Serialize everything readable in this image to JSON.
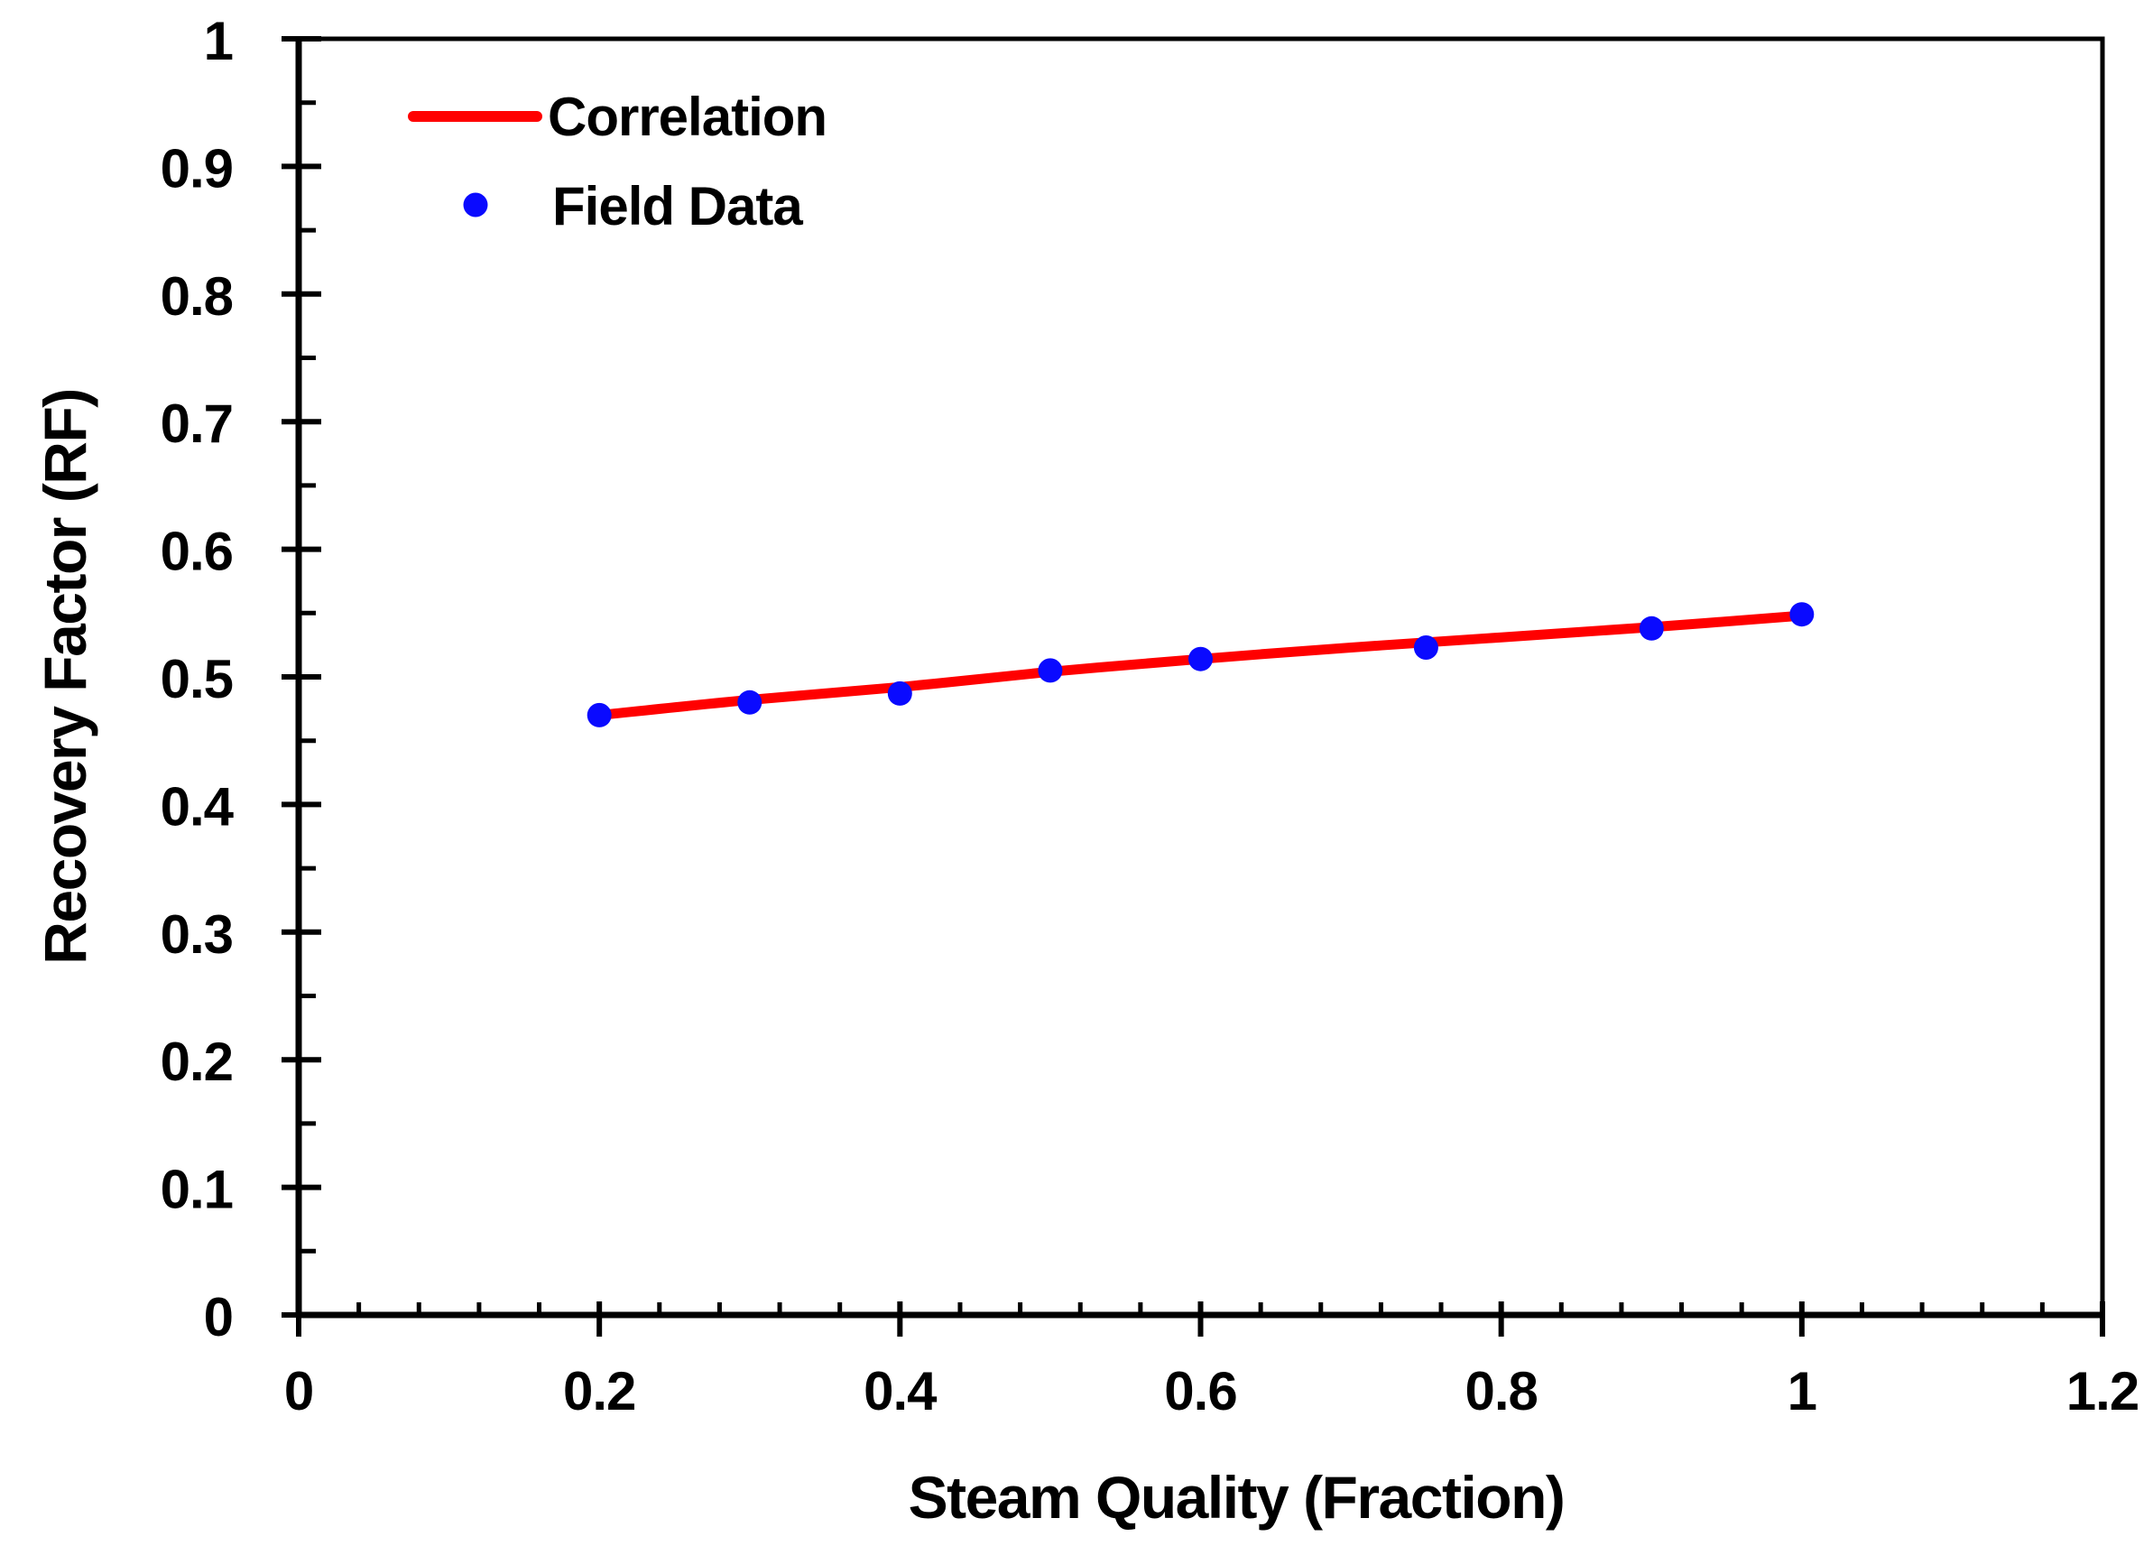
{
  "chart_data": {
    "type": "scatter",
    "title": "",
    "xlabel": "Steam Quality (Fraction)",
    "ylabel": "Recovery Factor (RF)",
    "xlim": [
      0,
      1.2
    ],
    "ylim": [
      0,
      1
    ],
    "grid": false,
    "legend_position": "inside-top-left",
    "x_major_ticks": [
      {
        "value": 0,
        "label": "0"
      },
      {
        "value": 0.2,
        "label": "0.2"
      },
      {
        "value": 0.4,
        "label": "0.4"
      },
      {
        "value": 0.6,
        "label": "0.6"
      },
      {
        "value": 0.8,
        "label": "0.8"
      },
      {
        "value": 1,
        "label": "1"
      },
      {
        "value": 1.2,
        "label": "1.2"
      }
    ],
    "x_minor_tick_step": 0.04,
    "y_major_ticks": [
      {
        "value": 0,
        "label": "0"
      },
      {
        "value": 0.1,
        "label": "0.1"
      },
      {
        "value": 0.2,
        "label": "0.2"
      },
      {
        "value": 0.3,
        "label": "0.3"
      },
      {
        "value": 0.4,
        "label": "0.4"
      },
      {
        "value": 0.5,
        "label": "0.5"
      },
      {
        "value": 0.6,
        "label": "0.6"
      },
      {
        "value": 0.7,
        "label": "0.7"
      },
      {
        "value": 0.8,
        "label": "0.8"
      },
      {
        "value": 0.9,
        "label": "0.9"
      },
      {
        "value": 1,
        "label": "1"
      }
    ],
    "y_minor_tick_step": 0.05,
    "series": [
      {
        "name": "Correlation",
        "type": "line",
        "color": "#ff0000",
        "x": [
          0.2,
          0.3,
          0.4,
          0.5,
          0.6,
          0.7,
          0.8,
          0.9,
          1.0
        ],
        "y": [
          0.47,
          0.482,
          0.492,
          0.504,
          0.514,
          0.523,
          0.531,
          0.539,
          0.548
        ]
      },
      {
        "name": "Field Data",
        "type": "scatter",
        "color": "#0a0aff",
        "x": [
          0.2,
          0.3,
          0.4,
          0.5,
          0.6,
          0.75,
          0.9,
          1.0
        ],
        "y": [
          0.47,
          0.48,
          0.487,
          0.505,
          0.514,
          0.523,
          0.538,
          0.549
        ]
      }
    ],
    "colors": {
      "correlation_line": "#ff0000",
      "field_data_marker": "#0a0aff",
      "axis": "#000000",
      "text": "#000000",
      "background": "#ffffff"
    }
  }
}
